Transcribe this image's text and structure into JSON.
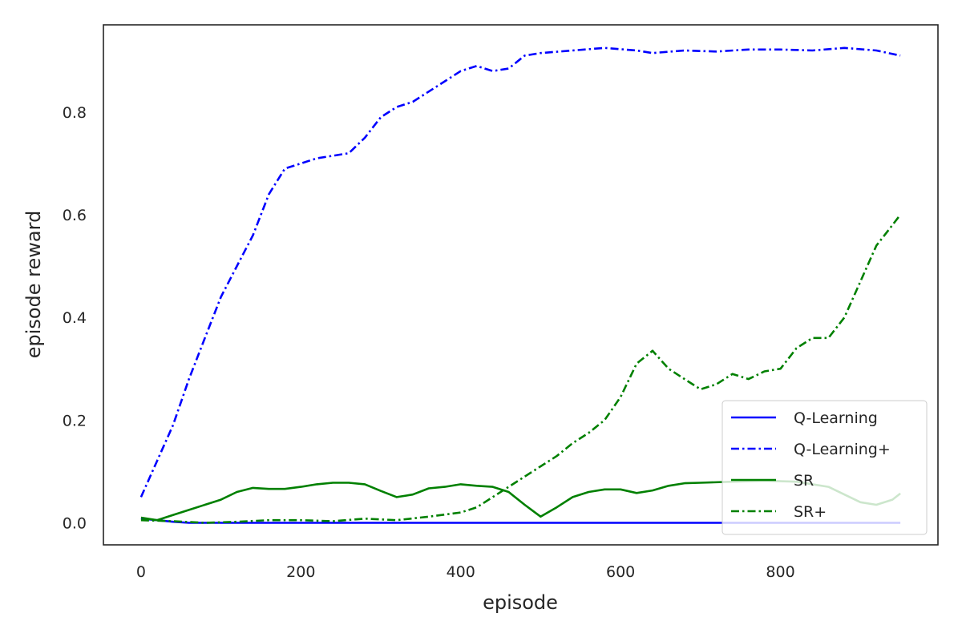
{
  "chart_data": {
    "type": "line",
    "title": "",
    "xlabel": "episode",
    "ylabel": "episode reward",
    "xlim": [
      -47,
      997
    ],
    "ylim": [
      -0.043,
      0.97
    ],
    "x_ticks": [
      0,
      200,
      400,
      600,
      800
    ],
    "y_ticks": [
      0.0,
      0.2,
      0.4,
      0.6,
      0.8
    ],
    "x_tick_labels": [
      "0",
      "200",
      "400",
      "600",
      "800"
    ],
    "y_tick_labels": [
      "0.0",
      "0.2",
      "0.4",
      "0.6",
      "0.8"
    ],
    "grid": false,
    "legend_position": "lower-right",
    "series": [
      {
        "name": "Q-Learning",
        "color": "#0000ff",
        "style": "solid",
        "points": [
          [
            0,
            0.008
          ],
          [
            20,
            0.005
          ],
          [
            40,
            0.002
          ],
          [
            60,
            0.0
          ],
          [
            100,
            0.0
          ],
          [
            200,
            0.0
          ],
          [
            300,
            0.0
          ],
          [
            400,
            0.0
          ],
          [
            500,
            0.0
          ],
          [
            600,
            0.0
          ],
          [
            700,
            0.0
          ],
          [
            800,
            0.0
          ],
          [
            900,
            0.0
          ],
          [
            950,
            0.0
          ]
        ]
      },
      {
        "name": "Q-Learning+",
        "color": "#0000ff",
        "style": "dashdot",
        "points": [
          [
            0,
            0.05
          ],
          [
            20,
            0.12
          ],
          [
            40,
            0.19
          ],
          [
            60,
            0.28
          ],
          [
            80,
            0.36
          ],
          [
            100,
            0.44
          ],
          [
            120,
            0.5
          ],
          [
            140,
            0.56
          ],
          [
            160,
            0.64
          ],
          [
            180,
            0.69
          ],
          [
            200,
            0.7
          ],
          [
            220,
            0.71
          ],
          [
            240,
            0.715
          ],
          [
            260,
            0.72
          ],
          [
            280,
            0.75
          ],
          [
            300,
            0.79
          ],
          [
            320,
            0.81
          ],
          [
            340,
            0.82
          ],
          [
            360,
            0.84
          ],
          [
            380,
            0.86
          ],
          [
            400,
            0.88
          ],
          [
            420,
            0.89
          ],
          [
            440,
            0.88
          ],
          [
            460,
            0.885
          ],
          [
            480,
            0.91
          ],
          [
            500,
            0.915
          ],
          [
            540,
            0.92
          ],
          [
            580,
            0.925
          ],
          [
            620,
            0.92
          ],
          [
            640,
            0.915
          ],
          [
            680,
            0.92
          ],
          [
            720,
            0.918
          ],
          [
            760,
            0.922
          ],
          [
            800,
            0.922
          ],
          [
            840,
            0.92
          ],
          [
            880,
            0.925
          ],
          [
            920,
            0.92
          ],
          [
            950,
            0.91
          ]
        ]
      },
      {
        "name": "SR",
        "color": "#008000",
        "style": "solid",
        "points": [
          [
            0,
            0.01
          ],
          [
            20,
            0.005
          ],
          [
            40,
            0.015
          ],
          [
            60,
            0.025
          ],
          [
            80,
            0.035
          ],
          [
            100,
            0.045
          ],
          [
            120,
            0.06
          ],
          [
            140,
            0.068
          ],
          [
            160,
            0.066
          ],
          [
            180,
            0.066
          ],
          [
            200,
            0.07
          ],
          [
            220,
            0.075
          ],
          [
            240,
            0.078
          ],
          [
            260,
            0.078
          ],
          [
            280,
            0.075
          ],
          [
            300,
            0.062
          ],
          [
            320,
            0.05
          ],
          [
            340,
            0.055
          ],
          [
            360,
            0.067
          ],
          [
            380,
            0.07
          ],
          [
            400,
            0.075
          ],
          [
            420,
            0.072
          ],
          [
            440,
            0.07
          ],
          [
            460,
            0.06
          ],
          [
            480,
            0.035
          ],
          [
            500,
            0.012
          ],
          [
            520,
            0.03
          ],
          [
            540,
            0.05
          ],
          [
            560,
            0.06
          ],
          [
            580,
            0.065
          ],
          [
            600,
            0.065
          ],
          [
            620,
            0.058
          ],
          [
            640,
            0.063
          ],
          [
            660,
            0.072
          ],
          [
            680,
            0.077
          ],
          [
            700,
            0.078
          ],
          [
            740,
            0.08
          ],
          [
            780,
            0.082
          ],
          [
            820,
            0.08
          ],
          [
            860,
            0.07
          ],
          [
            880,
            0.055
          ],
          [
            900,
            0.04
          ],
          [
            920,
            0.035
          ],
          [
            940,
            0.045
          ],
          [
            950,
            0.057
          ]
        ]
      },
      {
        "name": "SR+",
        "color": "#008000",
        "style": "dashdot",
        "points": [
          [
            0,
            0.005
          ],
          [
            40,
            0.003
          ],
          [
            80,
            0.0
          ],
          [
            120,
            0.002
          ],
          [
            160,
            0.005
          ],
          [
            200,
            0.005
          ],
          [
            240,
            0.003
          ],
          [
            280,
            0.008
          ],
          [
            320,
            0.005
          ],
          [
            360,
            0.012
          ],
          [
            400,
            0.02
          ],
          [
            420,
            0.03
          ],
          [
            440,
            0.05
          ],
          [
            460,
            0.07
          ],
          [
            480,
            0.09
          ],
          [
            500,
            0.11
          ],
          [
            520,
            0.13
          ],
          [
            540,
            0.155
          ],
          [
            560,
            0.175
          ],
          [
            580,
            0.2
          ],
          [
            600,
            0.245
          ],
          [
            620,
            0.31
          ],
          [
            640,
            0.335
          ],
          [
            660,
            0.3
          ],
          [
            680,
            0.28
          ],
          [
            700,
            0.26
          ],
          [
            720,
            0.27
          ],
          [
            740,
            0.29
          ],
          [
            760,
            0.28
          ],
          [
            780,
            0.295
          ],
          [
            800,
            0.3
          ],
          [
            820,
            0.34
          ],
          [
            840,
            0.36
          ],
          [
            860,
            0.36
          ],
          [
            880,
            0.4
          ],
          [
            900,
            0.47
          ],
          [
            920,
            0.54
          ],
          [
            940,
            0.58
          ],
          [
            950,
            0.6
          ]
        ]
      }
    ]
  }
}
